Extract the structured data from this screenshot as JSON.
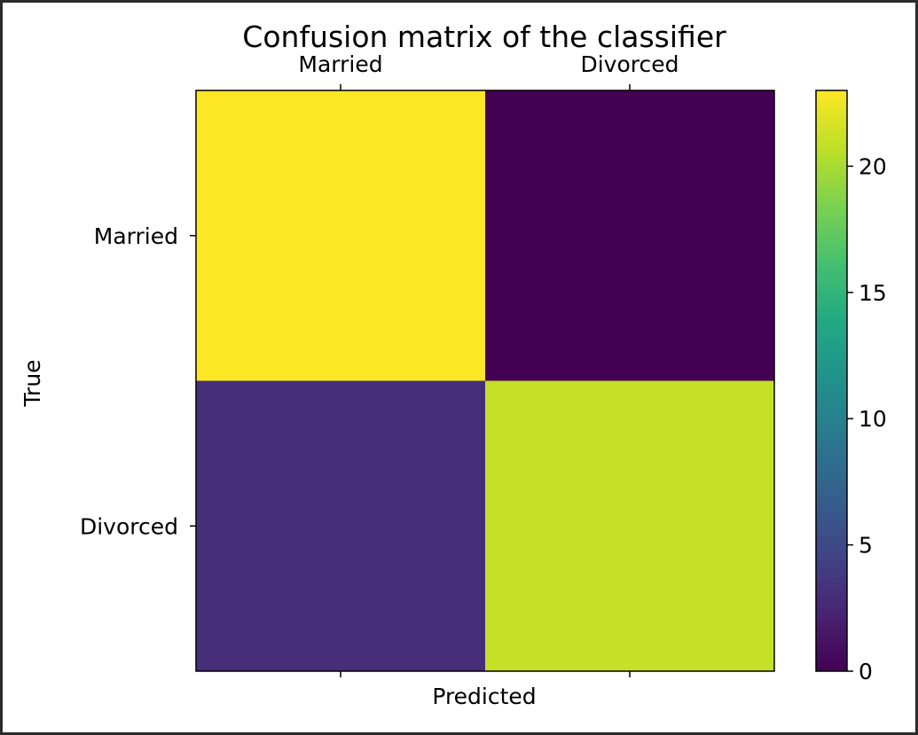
{
  "chart_data": {
    "type": "heatmap",
    "title": "Confusion matrix of the classifier",
    "xlabel": "Predicted",
    "ylabel": "True",
    "x_categories": [
      "Married",
      "Divorced"
    ],
    "y_categories": [
      "Married",
      "Divorced"
    ],
    "values": [
      [
        23,
        0
      ],
      [
        3,
        21
      ]
    ],
    "colormap": "viridis",
    "colorbar": {
      "range": [
        0,
        23
      ],
      "ticks": [
        0,
        5,
        10,
        15,
        20
      ]
    },
    "x_tick_position": "top",
    "grid": false
  },
  "colors": {
    "frame_border": "#2b2b2b",
    "background": "#ffffff"
  }
}
